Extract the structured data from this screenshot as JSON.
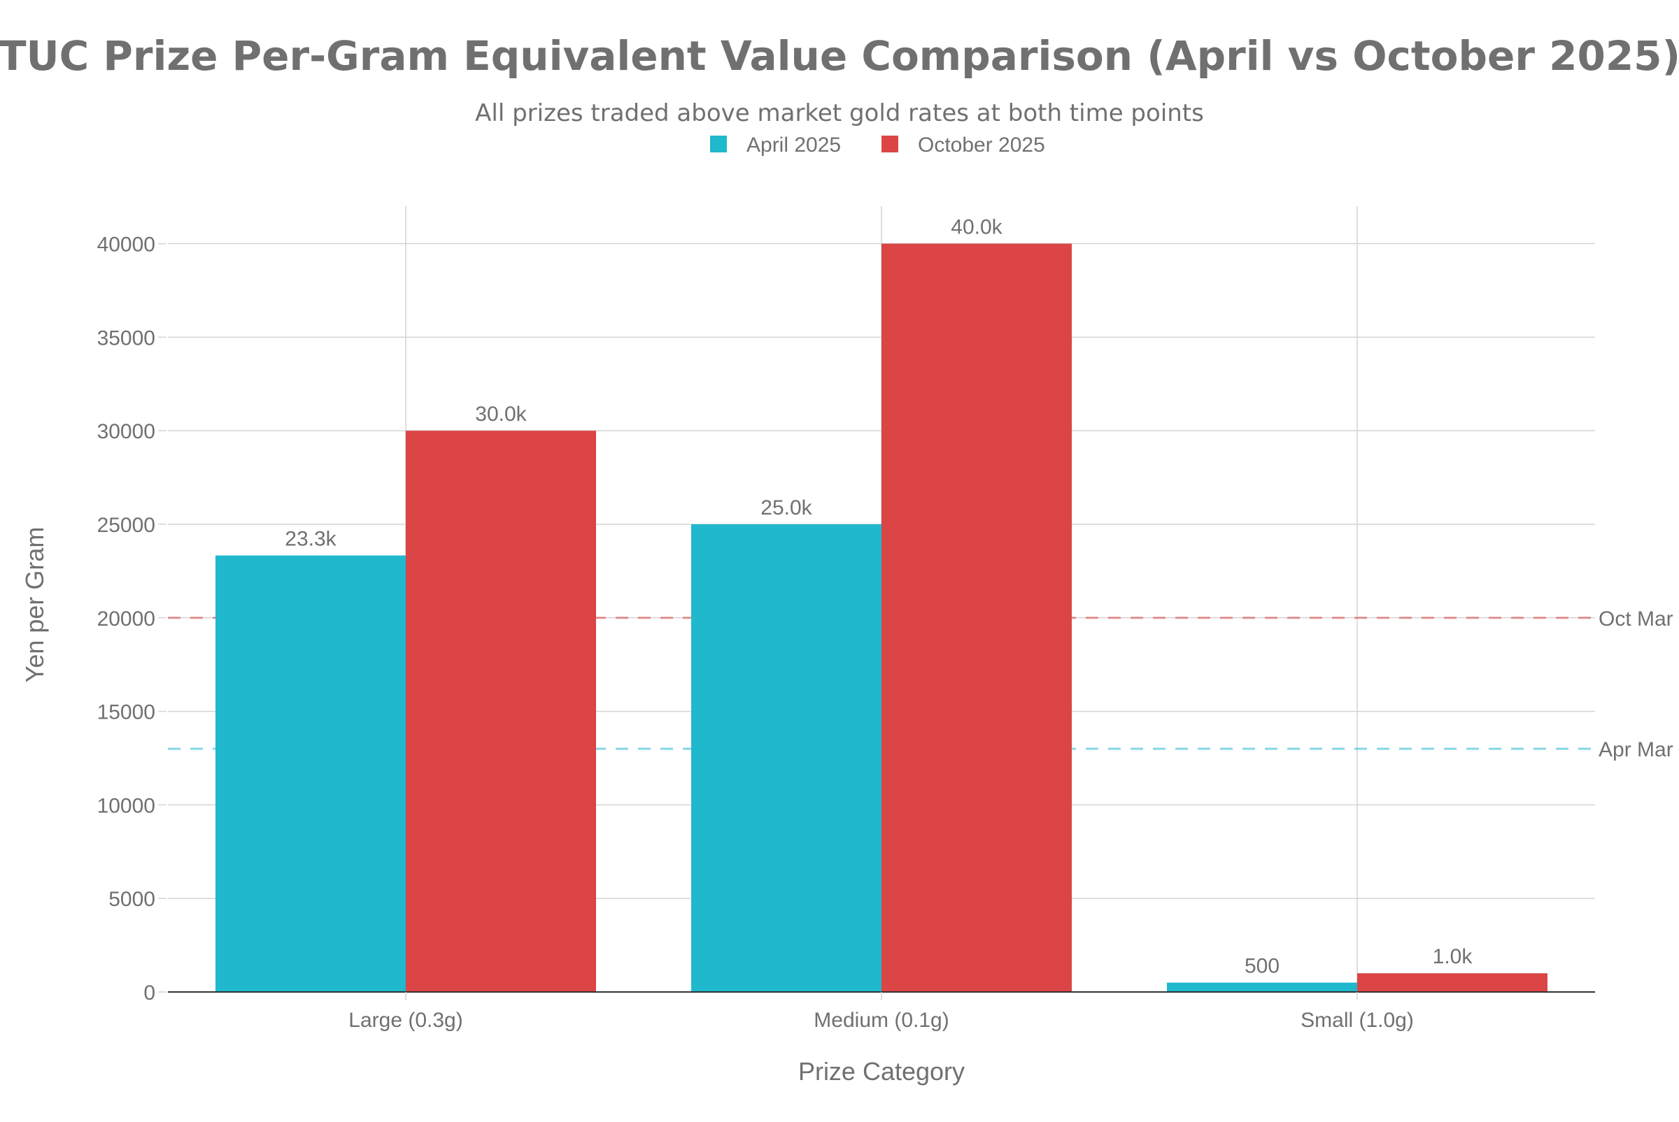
{
  "chart_data": {
    "type": "bar",
    "title": "TUC Prize Per-Gram Equivalent Value Comparison (April vs October 2025)",
    "subtitle": "All prizes traded above market gold rates at both time points",
    "xlabel": "Prize Category",
    "ylabel": "Yen per Gram",
    "categories": [
      "Large (0.3g)",
      "Medium (0.1g)",
      "Small (1.0g)"
    ],
    "series": [
      {
        "name": "April 2025",
        "color": "#1fb8cd",
        "values": [
          23333,
          25000,
          500
        ],
        "labels": [
          "23.3k",
          "25.0k",
          "500"
        ]
      },
      {
        "name": "October 2025",
        "color": "#db4545",
        "values": [
          30000,
          40000,
          1000
        ],
        "labels": [
          "30.0k",
          "40.0k",
          "1.0k"
        ]
      }
    ],
    "ylim": [
      0,
      42000
    ],
    "yticks": [
      0,
      5000,
      10000,
      15000,
      20000,
      25000,
      30000,
      35000,
      40000
    ],
    "ytick_labels": [
      "0",
      "5000",
      "10000",
      "15000",
      "20000",
      "25000",
      "30000",
      "35000",
      "40000"
    ],
    "reference_lines": [
      {
        "label": "Oct Mar",
        "value": 20000,
        "color": "#db4545"
      },
      {
        "label": "Apr Mar",
        "value": 13000,
        "color": "#1fb8cd"
      }
    ],
    "legend": {
      "position": "top-center",
      "orientation": "horizontal"
    },
    "grid": true,
    "text_color": "#707070",
    "grid_color": "#d4d4d4",
    "axis_color": "#333333"
  }
}
